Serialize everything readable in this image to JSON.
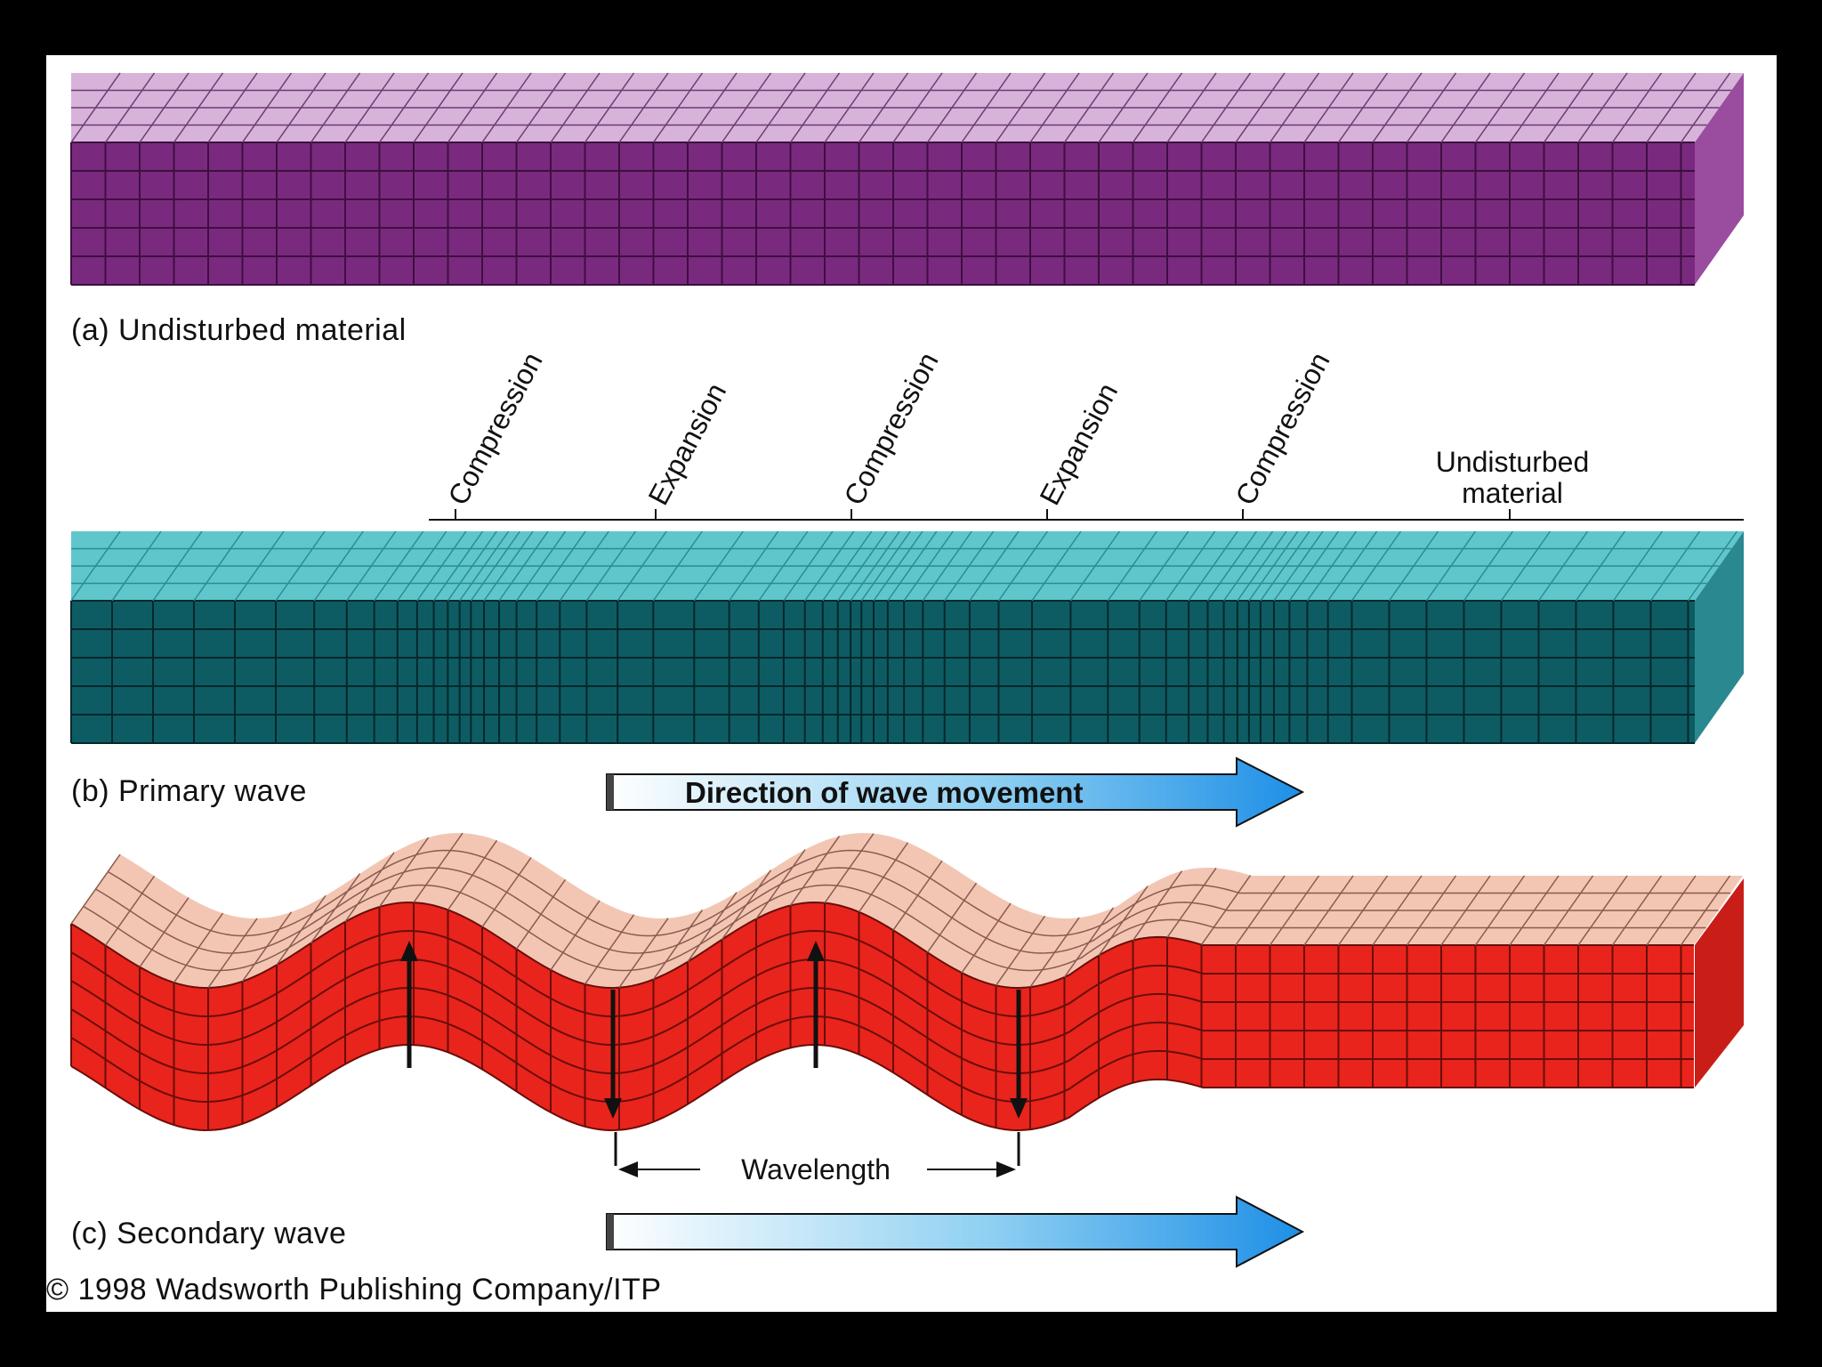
{
  "captions": {
    "a": "(a) Undisturbed material",
    "b": "(b) Primary wave",
    "c": "(c) Secondary wave"
  },
  "primary_wave": {
    "zone_labels": [
      "Compression",
      "Expansion",
      "Compression",
      "Expansion",
      "Compression"
    ],
    "undisturbed_line1": "Undisturbed",
    "undisturbed_line2": "material",
    "direction_label": "Direction of wave movement"
  },
  "secondary_wave": {
    "wavelength_label": "Wavelength"
  },
  "copyright": "© 1998 Wadsworth Publishing Company/ITP",
  "colors": {
    "background": "#000000",
    "panel": "#ffffff",
    "block_a_front": "#7a2a7e",
    "block_a_top": "#d7b3da",
    "block_b_front": "#0e5c63",
    "block_b_top": "#5fc7cc",
    "block_c_front": "#e8241c",
    "block_c_top": "#f3c6b4",
    "arrow_fill": "#2a9bea"
  }
}
